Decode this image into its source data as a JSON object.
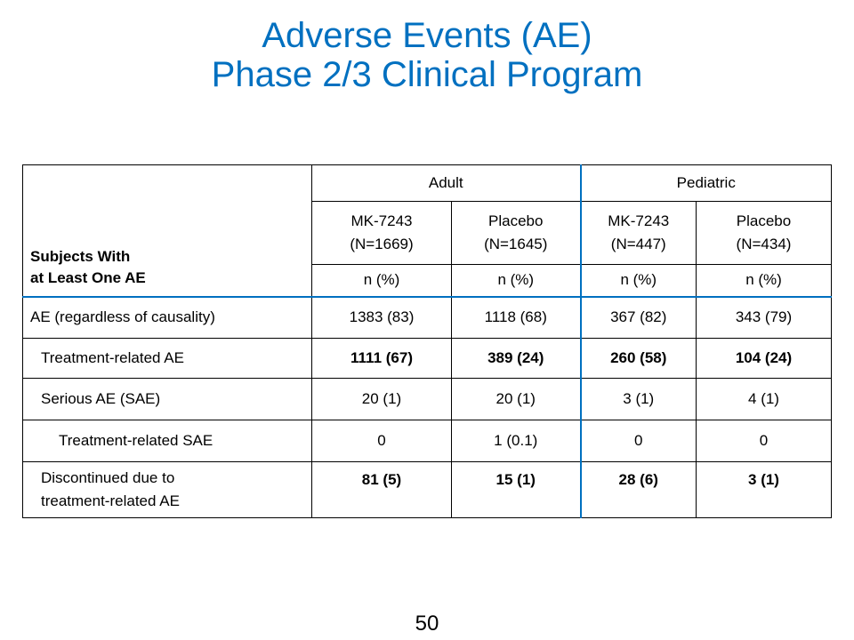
{
  "title": {
    "line1": "Adverse Events (AE)",
    "line2": "Phase 2/3 Clinical Program"
  },
  "table": {
    "row_header_label_line1": "Subjects With",
    "row_header_label_line2": "at Least One AE",
    "groups": [
      "Adult",
      "Pediatric"
    ],
    "arms": [
      {
        "name": "MK-7243",
        "n": "(N=1669)"
      },
      {
        "name": "Placebo",
        "n": "(N=1645)"
      },
      {
        "name": "MK-7243",
        "n": "(N=447)"
      },
      {
        "name": "Placebo",
        "n": "(N=434)"
      }
    ],
    "unit_label": "n (%)",
    "rows": [
      {
        "label": "AE (regardless of causality)",
        "values": [
          "1383 (83)",
          "1118 (68)",
          "367 (82)",
          "343 (79)"
        ]
      },
      {
        "label": "Treatment-related AE",
        "values": [
          "1111 (67)",
          "389 (24)",
          "260 (58)",
          "104 (24)"
        ]
      },
      {
        "label": "Serious AE (SAE)",
        "values": [
          "20 (1)",
          "20 (1)",
          "3 (1)",
          "4 (1)"
        ]
      },
      {
        "label": "Treatment-related SAE",
        "values": [
          "0",
          "1 (0.1)",
          "0",
          "0"
        ]
      },
      {
        "label_line1": "Discontinued due to",
        "label_line2": "treatment-related AE",
        "values": [
          "81 (5)",
          "15 (1)",
          "28 (6)",
          "3 (1)"
        ]
      }
    ]
  },
  "page_number": "50",
  "colors": {
    "title": "#0070C0",
    "accent_border": "#0070C0"
  }
}
